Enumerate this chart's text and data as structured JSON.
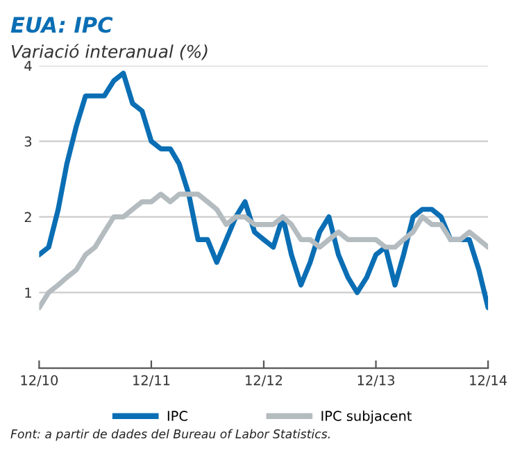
{
  "chart_data": {
    "type": "line",
    "title": "EUA: IPC",
    "subtitle": "Variació interanual (%)",
    "x": [
      "2010-12",
      "2011-01",
      "2011-02",
      "2011-03",
      "2011-04",
      "2011-05",
      "2011-06",
      "2011-07",
      "2011-08",
      "2011-09",
      "2011-10",
      "2011-11",
      "2011-12",
      "2012-01",
      "2012-02",
      "2012-03",
      "2012-04",
      "2012-05",
      "2012-06",
      "2012-07",
      "2012-08",
      "2012-09",
      "2012-10",
      "2012-11",
      "2012-12",
      "2013-01",
      "2013-02",
      "2013-03",
      "2013-04",
      "2013-05",
      "2013-06",
      "2013-07",
      "2013-08",
      "2013-09",
      "2013-10",
      "2013-11",
      "2013-12",
      "2014-01",
      "2014-02",
      "2014-03",
      "2014-04",
      "2014-05",
      "2014-06",
      "2014-07",
      "2014-08",
      "2014-09",
      "2014-10",
      "2014-11",
      "2014-12"
    ],
    "series": [
      {
        "name": "IPC",
        "color": "#0a6eb4",
        "values": [
          1.5,
          1.6,
          2.1,
          2.7,
          3.2,
          3.6,
          3.6,
          3.6,
          3.8,
          3.9,
          3.5,
          3.4,
          3.0,
          2.9,
          2.9,
          2.7,
          2.3,
          1.7,
          1.7,
          1.4,
          1.7,
          2.0,
          2.2,
          1.8,
          1.7,
          1.6,
          2.0,
          1.5,
          1.1,
          1.4,
          1.8,
          2.0,
          1.5,
          1.2,
          1.0,
          1.2,
          1.5,
          1.6,
          1.1,
          1.5,
          2.0,
          2.1,
          2.1,
          2.0,
          1.7,
          1.7,
          1.7,
          1.3,
          0.8
        ]
      },
      {
        "name": "IPC subjacent",
        "color": "#b4bcc0",
        "values": [
          0.8,
          1.0,
          1.1,
          1.2,
          1.3,
          1.5,
          1.6,
          1.8,
          2.0,
          2.0,
          2.1,
          2.2,
          2.2,
          2.3,
          2.2,
          2.3,
          2.3,
          2.3,
          2.2,
          2.1,
          1.9,
          2.0,
          2.0,
          1.9,
          1.9,
          1.9,
          2.0,
          1.9,
          1.7,
          1.7,
          1.6,
          1.7,
          1.8,
          1.7,
          1.7,
          1.7,
          1.7,
          1.6,
          1.6,
          1.7,
          1.8,
          2.0,
          1.9,
          1.9,
          1.7,
          1.7,
          1.8,
          1.7,
          1.6
        ]
      }
    ],
    "xlim": [
      "2010-12",
      "2014-12"
    ],
    "xticks": [
      {
        "value": "2010-12",
        "label": "12/10"
      },
      {
        "value": "2011-12",
        "label": "12/11"
      },
      {
        "value": "2012-12",
        "label": "12/12"
      },
      {
        "value": "2013-12",
        "label": "12/13"
      },
      {
        "value": "2014-12",
        "label": "12/14"
      }
    ],
    "ylim": [
      0,
      4
    ],
    "yticks": [
      1,
      2,
      3,
      4
    ],
    "grid": "y",
    "legend": "bottom",
    "line_style": "solid",
    "marker": "none",
    "annotations": [
      "Font: a partir de dades del Bureau of Labor Statistics."
    ]
  }
}
